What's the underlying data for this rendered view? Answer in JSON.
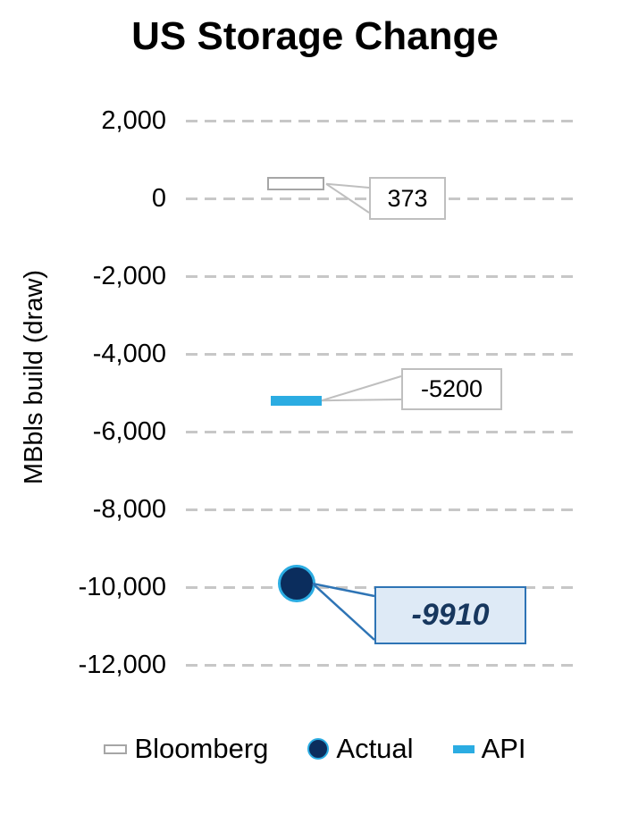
{
  "chart_data": {
    "type": "scatter",
    "title": "US Storage Change",
    "xlabel": "",
    "ylabel": "MBbls build (draw)",
    "ylim": [
      -12000,
      2000
    ],
    "grid": "horizontal-dashed",
    "legend_position": "bottom",
    "yticks": [
      {
        "value": 2000,
        "label": "2,000"
      },
      {
        "value": 0,
        "label": "0"
      },
      {
        "value": -2000,
        "label": "-2,000"
      },
      {
        "value": -4000,
        "label": "-4,000"
      },
      {
        "value": -6000,
        "label": "-6,000"
      },
      {
        "value": -8000,
        "label": "-8,000"
      },
      {
        "value": -10000,
        "label": "-10,000"
      },
      {
        "value": -12000,
        "label": "-12,000"
      }
    ],
    "series": [
      {
        "name": "Bloomberg",
        "value": 373,
        "data_label": "373",
        "marker": "bar-outline",
        "fill": "#FFFFFF",
        "stroke": "#A6A6A6"
      },
      {
        "name": "Actual",
        "value": -9910,
        "data_label": "-9910",
        "marker": "circle",
        "fill": "#0B2D5D",
        "stroke": "#2BACE2"
      },
      {
        "name": "API",
        "value": -5200,
        "data_label": "-5200",
        "marker": "dash",
        "fill": "#2BACE2",
        "stroke": "#2BACE2"
      }
    ]
  },
  "colors": {
    "grid": "#C7C7C7",
    "callout_border": "#BFBFBF",
    "actual_callout_fill": "#DEEAF6",
    "actual_callout_border": "#2E74B5",
    "actual_callout_text": "#17375E"
  }
}
